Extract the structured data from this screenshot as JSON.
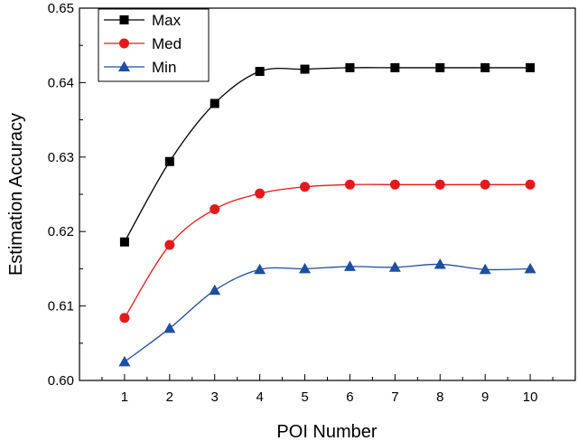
{
  "chart_data": {
    "type": "line",
    "xlabel": "POI Number",
    "ylabel": "Estimation Accuracy",
    "x": [
      1,
      2,
      3,
      4,
      5,
      6,
      7,
      8,
      9,
      10
    ],
    "xlim": [
      0,
      11
    ],
    "ylim": [
      0.6,
      0.65
    ],
    "xticks": [
      1,
      2,
      3,
      4,
      5,
      6,
      7,
      8,
      9,
      10
    ],
    "xtick_labels": [
      "1",
      "2",
      "3",
      "4",
      "5",
      "6",
      "7",
      "8",
      "9",
      "10"
    ],
    "yticks": [
      0.6,
      0.61,
      0.62,
      0.63,
      0.64,
      0.65
    ],
    "ytick_labels": [
      "0.60",
      "0.61",
      "0.62",
      "0.63",
      "0.64",
      "0.65"
    ],
    "legend_position": "top-left",
    "series": [
      {
        "name": "Max",
        "color": "#000000",
        "marker": "square",
        "values": [
          0.6186,
          0.6294,
          0.6372,
          0.6415,
          0.6418,
          0.642,
          0.642,
          0.642,
          0.642,
          0.642
        ]
      },
      {
        "name": "Med",
        "color": "#e31a1c",
        "marker": "circle",
        "values": [
          0.6084,
          0.6182,
          0.623,
          0.6251,
          0.626,
          0.6263,
          0.6263,
          0.6263,
          0.6263,
          0.6263
        ]
      },
      {
        "name": "Min",
        "color": "#1f4fa0",
        "marker": "triangle",
        "values": [
          0.6025,
          0.607,
          0.6121,
          0.6149,
          0.615,
          0.6153,
          0.6152,
          0.6156,
          0.6149,
          0.615
        ]
      }
    ]
  }
}
